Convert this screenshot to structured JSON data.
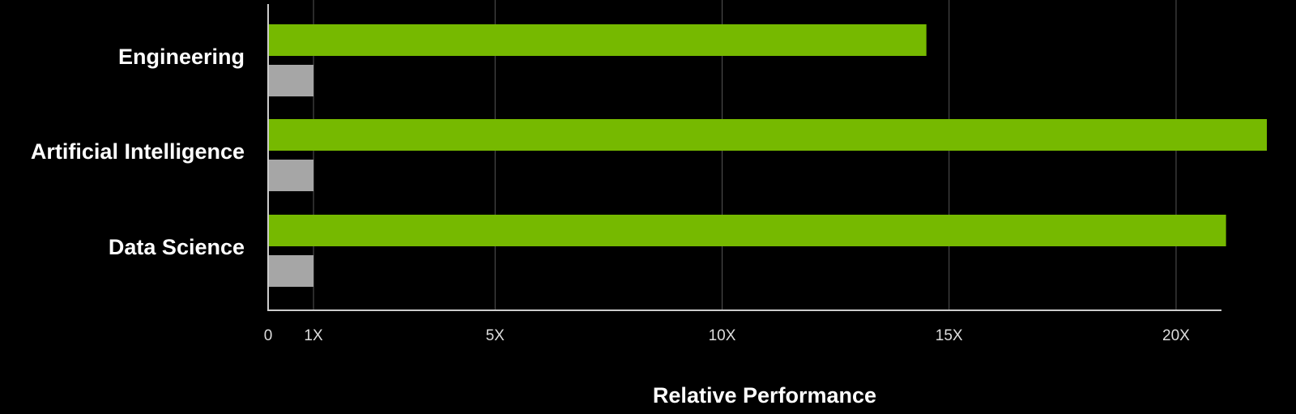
{
  "chart_data": {
    "type": "hbar",
    "xlabel": "Relative Performance",
    "categories": [
      "Engineering",
      "Artificial Intelligence",
      "Data Science"
    ],
    "series": [
      {
        "color": "#76b900",
        "values": [
          14.5,
          22,
          21.1
        ]
      },
      {
        "color": "#a6a6a6",
        "values": [
          1,
          1,
          1
        ]
      }
    ],
    "xlim": [
      0,
      21
    ],
    "xticks": [
      0,
      {
        "value": 1,
        "label": "1X"
      },
      {
        "value": 5,
        "label": "5X"
      },
      {
        "value": 10,
        "label": "10X"
      },
      {
        "value": 15,
        "label": "15X"
      },
      {
        "value": 20,
        "label": "20X"
      }
    ],
    "grid": true
  }
}
